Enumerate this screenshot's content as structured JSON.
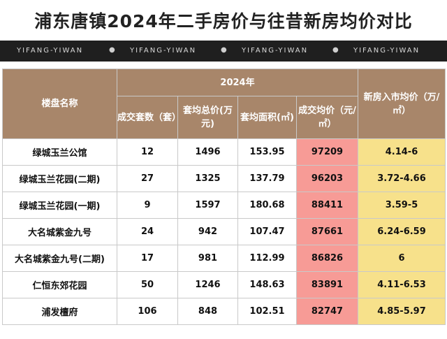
{
  "title": "浦东唐镇2024年二手房价与往昔新房均价对比",
  "banner": {
    "watermark": "YIFANG-YIWAN",
    "dot": "●"
  },
  "table": {
    "headers": {
      "name": "楼盘名称",
      "year_group": "2024年",
      "deals": "成交套数（套）",
      "avg_total": "套均总价(万元)",
      "avg_area": "套均面积(㎡)",
      "unit_price": "成交均价（元/㎡）",
      "new_price": "新房入市均价（万/㎡）"
    },
    "rows": [
      {
        "name": "绿城玉兰公馆",
        "deals": "12",
        "avg_total": "1496",
        "avg_area": "153.95",
        "unit_price": "97209",
        "new_price": "4.14-6"
      },
      {
        "name": "绿城玉兰花园(二期)",
        "deals": "27",
        "avg_total": "1325",
        "avg_area": "137.79",
        "unit_price": "96203",
        "new_price": "3.72-4.66"
      },
      {
        "name": "绿城玉兰花园(一期)",
        "deals": "9",
        "avg_total": "1597",
        "avg_area": "180.68",
        "unit_price": "88411",
        "new_price": "3.59-5"
      },
      {
        "name": "大名城紫金九号",
        "deals": "24",
        "avg_total": "942",
        "avg_area": "107.47",
        "unit_price": "87661",
        "new_price": "6.24-6.59"
      },
      {
        "name": "大名城紫金九号(二期)",
        "deals": "17",
        "avg_total": "981",
        "avg_area": "112.99",
        "unit_price": "86826",
        "new_price": "6"
      },
      {
        "name": "仁恒东郊花园",
        "deals": "50",
        "avg_total": "1246",
        "avg_area": "148.63",
        "unit_price": "83891",
        "new_price": "4.11-6.53"
      },
      {
        "name": "浦发檀府",
        "deals": "106",
        "avg_total": "848",
        "avg_area": "102.51",
        "unit_price": "82747",
        "new_price": "4.85-5.97"
      }
    ]
  },
  "colors": {
    "header_bg": "#a8866a",
    "price_highlight": "#f79b96",
    "new_price_highlight": "#f7e18b",
    "banner_bg": "#1f1f1f"
  }
}
